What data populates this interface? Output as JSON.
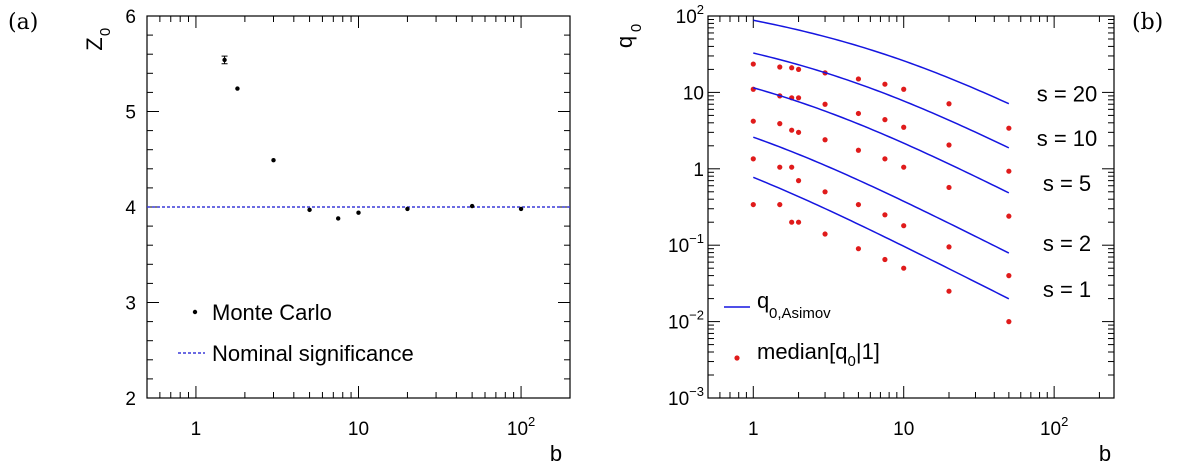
{
  "panels": {
    "left_tag": "(a)",
    "right_tag": "(b)"
  },
  "chart_data": [
    {
      "type": "scatter",
      "xlabel": "b",
      "ylabel": "Z",
      "ylabel_sub": "0",
      "xscale": "log",
      "xlim": [
        0.5,
        200
      ],
      "ylim": [
        2,
        6
      ],
      "yticks": [
        "2",
        "3",
        "4",
        "5",
        "6"
      ],
      "xticks": [
        {
          "v": 1,
          "base": "1",
          "exp": ""
        },
        {
          "v": 10,
          "base": "10",
          "exp": ""
        },
        {
          "v": 100,
          "base": "10",
          "exp": "2"
        }
      ],
      "legend_position": "bottom-left",
      "series": [
        {
          "name": "Monte Carlo",
          "marker": "dot",
          "color": "#000000",
          "x": [
            1.5,
            1.8,
            3,
            5,
            7.5,
            10,
            20,
            50,
            100
          ],
          "y": [
            5.54,
            5.24,
            4.49,
            3.97,
            3.88,
            3.94,
            3.98,
            4.01,
            3.98
          ],
          "err": [
            0.04,
            0,
            0,
            0,
            0,
            0,
            0,
            0,
            0
          ]
        },
        {
          "name": "Nominal significance",
          "marker": "dashed-line",
          "color": "#3a3ad8",
          "y_const": 4
        }
      ]
    },
    {
      "type": "line",
      "xlabel": "b",
      "ylabel": "q",
      "ylabel_sub": "0",
      "xscale": "log",
      "yscale": "log",
      "xlim": [
        0.5,
        250
      ],
      "ylim": [
        0.001,
        100
      ],
      "xticks": [
        {
          "v": 1,
          "base": "1",
          "exp": ""
        },
        {
          "v": 10,
          "base": "10",
          "exp": ""
        },
        {
          "v": 100,
          "base": "10",
          "exp": "2"
        }
      ],
      "yticks": [
        {
          "v": 0.001,
          "base": "10",
          "exp": "−3"
        },
        {
          "v": 0.01,
          "base": "10",
          "exp": "−2"
        },
        {
          "v": 0.1,
          "base": "10",
          "exp": "−1"
        },
        {
          "v": 1,
          "base": "1",
          "exp": ""
        },
        {
          "v": 10,
          "base": "10",
          "exp": ""
        },
        {
          "v": 100,
          "base": "10",
          "exp": "2"
        }
      ],
      "legend_position": "bottom-left",
      "legend": [
        {
          "label": "q",
          "sub": "0,Asimov",
          "marker": "line",
          "color": "#1515e0"
        },
        {
          "label": "median[q",
          "sub": "0",
          "suffix": "|1]",
          "marker": "dot",
          "color": "#e01b1b"
        }
      ],
      "x": [
        1,
        1.5,
        1.8,
        2,
        3,
        5,
        7.5,
        10,
        20,
        50
      ],
      "series": [
        {
          "name": "s = 20",
          "s": 20,
          "median": [
            23.5,
            21.5,
            21.0,
            20.0,
            18.0,
            15.0,
            12.8,
            11.0,
            7.1,
            3.4
          ]
        },
        {
          "name": "s = 10",
          "s": 10,
          "median": [
            11.0,
            9.0,
            8.5,
            8.5,
            7.0,
            5.3,
            4.4,
            3.5,
            2.05,
            0.93
          ]
        },
        {
          "name": "s = 5",
          "s": 5,
          "median": [
            4.2,
            3.9,
            3.2,
            3.0,
            2.4,
            1.75,
            1.35,
            1.05,
            0.57,
            0.24
          ]
        },
        {
          "name": "s = 2",
          "s": 2,
          "median": [
            1.35,
            1.05,
            1.05,
            0.7,
            0.5,
            0.34,
            0.25,
            0.18,
            0.095,
            0.04
          ]
        },
        {
          "name": "s = 1",
          "s": 1,
          "median": [
            0.34,
            0.34,
            0.2,
            0.2,
            0.14,
            0.09,
            0.065,
            0.05,
            0.025,
            0.01
          ]
        }
      ]
    }
  ]
}
